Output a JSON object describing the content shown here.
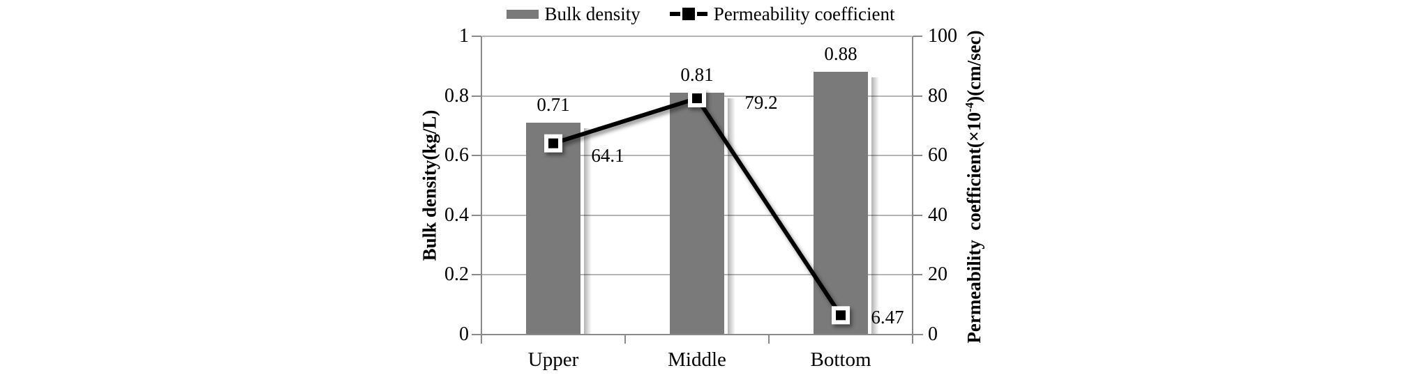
{
  "chart_data": {
    "type": "bar",
    "subtype": "combo-bar-line-dual-axis",
    "title": "",
    "categories": [
      "Upper",
      "Middle",
      "Bottom"
    ],
    "series": [
      {
        "name": "Bulk density",
        "chart": "bar",
        "axis": "left",
        "values": [
          0.71,
          0.81,
          0.88
        ],
        "data_labels": [
          "0.71",
          "0.81",
          "0.88"
        ],
        "color": "#7a7a7a"
      },
      {
        "name": "Permeability coefficient",
        "chart": "line",
        "axis": "right",
        "values": [
          64.1,
          79.2,
          6.47
        ],
        "data_labels": [
          "64.1",
          "79.2",
          "6.47"
        ],
        "color": "#000000",
        "marker": "filled-square-white-border"
      }
    ],
    "left_axis": {
      "title": "Bulk density(kg/L)",
      "min": 0,
      "max": 1,
      "ticks": [
        "1",
        "0.8",
        "0.6",
        "0.4",
        "0.2",
        "0"
      ]
    },
    "right_axis": {
      "title_parts": [
        "Permeability  coefficient(×10",
        "-4",
        ")(cm/sec)"
      ],
      "min": 0,
      "max": 100,
      "ticks": [
        "100",
        "80",
        "60",
        "40",
        "20",
        "0"
      ]
    },
    "legend": {
      "position": "top"
    },
    "grid": true,
    "colors": {
      "bar": "#7a7a7a",
      "line": "#000000",
      "gridline": "#b5b5b5",
      "axis": "#8a8a8a",
      "background": "#ffffff"
    }
  }
}
